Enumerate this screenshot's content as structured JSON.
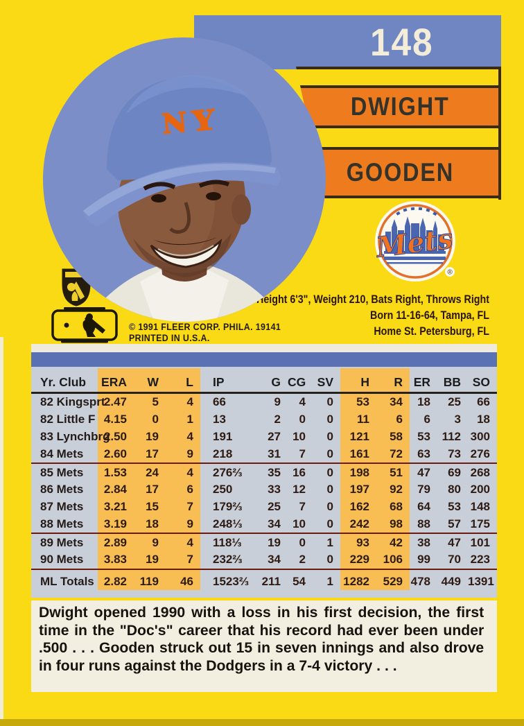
{
  "card": {
    "number": "148",
    "first_name": "DWIGHT",
    "last_name": "GOODEN",
    "team_logo_text": "Mets",
    "registered_mark": "®",
    "copyright_line1": "© 1991 FLEER CORP. PHILA. 19141",
    "copyright_line2": "PRINTED IN U.S.A.",
    "bio_line1": "Height 6'3\", Weight 210, Bats Right, Throws Right",
    "bio_line2": "Born 11-16-64, Tampa, FL",
    "bio_line3": "Home St. Petersburg, FL"
  },
  "stats": {
    "headers": [
      "Yr. Club",
      "ERA",
      "W",
      "L",
      "IP",
      "G",
      "CG",
      "SV",
      "H",
      "R",
      "ER",
      "BB",
      "SO"
    ],
    "rows": [
      [
        "82 Kingsprt",
        "2.47",
        "5",
        "4",
        "66",
        "9",
        "4",
        "0",
        "53",
        "34",
        "18",
        "25",
        "66"
      ],
      [
        "82 Little F",
        "4.15",
        "0",
        "1",
        "13",
        "2",
        "0",
        "0",
        "11",
        "6",
        "6",
        "3",
        "18"
      ],
      [
        "83 Lynchbrg",
        "2.50",
        "19",
        "4",
        "191",
        "27",
        "10",
        "0",
        "121",
        "58",
        "53",
        "112",
        "300"
      ],
      [
        "84 Mets",
        "2.60",
        "17",
        "9",
        "218",
        "31",
        "7",
        "0",
        "161",
        "72",
        "63",
        "73",
        "276"
      ],
      [
        "85 Mets",
        "1.53",
        "24",
        "4",
        "276⅔",
        "35",
        "16",
        "0",
        "198",
        "51",
        "47",
        "69",
        "268"
      ],
      [
        "86 Mets",
        "2.84",
        "17",
        "6",
        "250",
        "33",
        "12",
        "0",
        "197",
        "92",
        "79",
        "80",
        "200"
      ],
      [
        "87 Mets",
        "3.21",
        "15",
        "7",
        "179⅔",
        "25",
        "7",
        "0",
        "162",
        "68",
        "64",
        "53",
        "148"
      ],
      [
        "88 Mets",
        "3.19",
        "18",
        "9",
        "248⅓",
        "34",
        "10",
        "0",
        "242",
        "98",
        "88",
        "57",
        "175"
      ],
      [
        "89 Mets",
        "2.89",
        "9",
        "4",
        "118⅓",
        "19",
        "0",
        "1",
        "93",
        "42",
        "38",
        "47",
        "101"
      ],
      [
        "90 Mets",
        "3.83",
        "19",
        "7",
        "232⅔",
        "34",
        "2",
        "0",
        "229",
        "106",
        "99",
        "70",
        "223"
      ],
      [
        "ML Totals",
        "2.82",
        "119",
        "46",
        "1523⅔",
        "211",
        "54",
        "1",
        "1282",
        "529",
        "478",
        "449",
        "1391"
      ]
    ],
    "group_breaks_after": [
      3,
      7,
      9
    ]
  },
  "note": "Dwight opened 1990 with a loss in his first decision, the first time in the \"Doc's\" career that his record had ever been under .500 . . . Gooden struck out 15 in seven innings and also drove in four runs against the Dodgers in a 7-4 victory . . .",
  "colors": {
    "card_yellow": "#fada14",
    "banner_blue": "#6f86c2",
    "bar_orange": "#ee7b1d",
    "table_blue": "#5a72b4",
    "table_gray": "#c9cfd8",
    "table_orange_band": "#f8bd53",
    "blurb_cream": "#f2eee0",
    "mets_orange": "#ef7223",
    "mets_blue": "#4a66b0"
  }
}
